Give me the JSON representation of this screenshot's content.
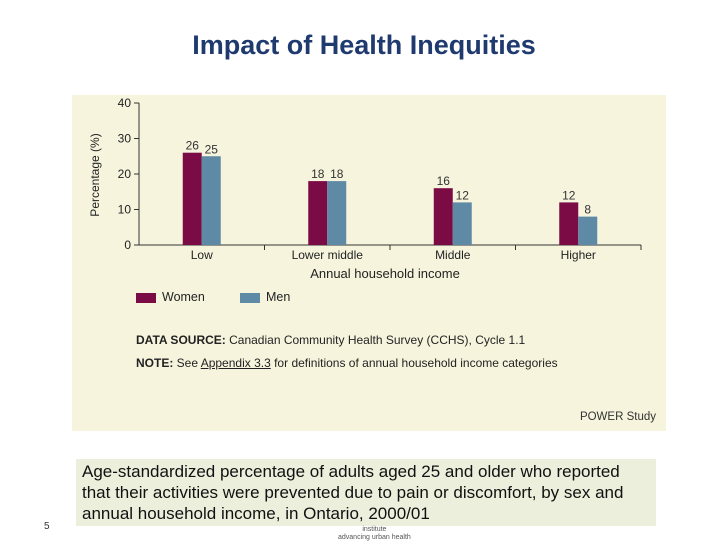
{
  "slide": {
    "title": "Impact of Health Inequities",
    "number": "5",
    "caption": "Age-standardized percentage of adults aged 25 and older who reported that their activities were prevented due to pain or discomfort, by sex and annual household income, in Ontario, 2000/01",
    "footer_logo_line1": "institute",
    "footer_logo_line2": "advancing urban health"
  },
  "notes": {
    "source_label": "DATA SOURCE:",
    "source_text": " Canadian Community Health Survey (CCHS), Cycle 1.1",
    "note_label": "NOTE:",
    "note_pre": " See ",
    "note_link": "Appendix 3.3",
    "note_post": " for definitions of annual household income categories",
    "credit": "POWER Study"
  },
  "colors": {
    "women": "#7a0b45",
    "men": "#5f8aa6"
  },
  "chart_data": {
    "type": "bar",
    "title": "",
    "xlabel": "Annual household income",
    "ylabel": "Percentage (%)",
    "ylim": [
      0,
      40
    ],
    "yticks": [
      0,
      10,
      20,
      30,
      40
    ],
    "categories": [
      "Low",
      "Lower middle",
      "Middle",
      "Higher"
    ],
    "series": [
      {
        "name": "Women",
        "values": [
          26,
          18,
          16,
          12
        ]
      },
      {
        "name": "Men",
        "values": [
          25,
          18,
          12,
          8
        ]
      }
    ],
    "legend_position": "bottom-left"
  }
}
